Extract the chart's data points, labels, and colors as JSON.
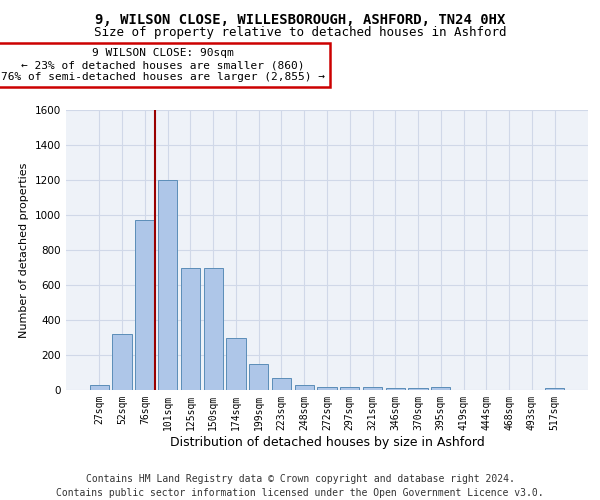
{
  "title1": "9, WILSON CLOSE, WILLESBOROUGH, ASHFORD, TN24 0HX",
  "title2": "Size of property relative to detached houses in Ashford",
  "xlabel": "Distribution of detached houses by size in Ashford",
  "ylabel": "Number of detached properties",
  "categories": [
    "27sqm",
    "52sqm",
    "76sqm",
    "101sqm",
    "125sqm",
    "150sqm",
    "174sqm",
    "199sqm",
    "223sqm",
    "248sqm",
    "272sqm",
    "297sqm",
    "321sqm",
    "346sqm",
    "370sqm",
    "395sqm",
    "419sqm",
    "444sqm",
    "468sqm",
    "493sqm",
    "517sqm"
  ],
  "values": [
    30,
    320,
    970,
    1200,
    700,
    700,
    300,
    150,
    70,
    30,
    20,
    15,
    15,
    10,
    10,
    15,
    0,
    0,
    0,
    0,
    10
  ],
  "bar_color": "#aec6e8",
  "bar_edge_color": "#5b8db8",
  "vline_color": "#990000",
  "annotation_text": "9 WILSON CLOSE: 90sqm\n← 23% of detached houses are smaller (860)\n76% of semi-detached houses are larger (2,855) →",
  "annotation_box_color": "#ffffff",
  "annotation_box_edge": "#cc0000",
  "ylim": [
    0,
    1600
  ],
  "yticks": [
    0,
    200,
    400,
    600,
    800,
    1000,
    1200,
    1400,
    1600
  ],
  "grid_color": "#d0d8e8",
  "bg_color": "#eef2f8",
  "footer": "Contains HM Land Registry data © Crown copyright and database right 2024.\nContains public sector information licensed under the Open Government Licence v3.0.",
  "title1_fontsize": 10,
  "title2_fontsize": 9,
  "xlabel_fontsize": 9,
  "ylabel_fontsize": 8,
  "tick_fontsize": 7,
  "annotation_fontsize": 8,
  "footer_fontsize": 7
}
